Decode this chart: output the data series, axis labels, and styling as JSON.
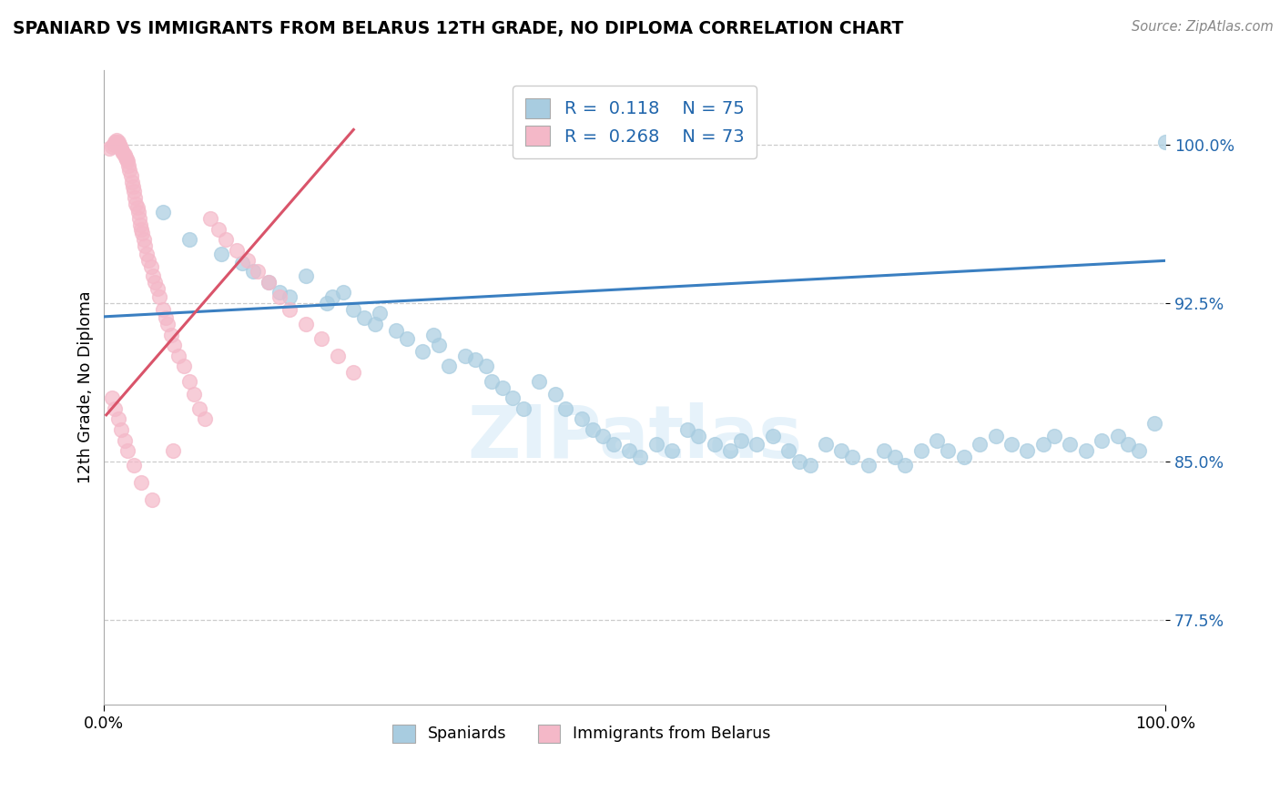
{
  "title": "SPANIARD VS IMMIGRANTS FROM BELARUS 12TH GRADE, NO DIPLOMA CORRELATION CHART",
  "source": "Source: ZipAtlas.com",
  "ylabel": "12th Grade, No Diploma",
  "xlim": [
    0.0,
    1.0
  ],
  "ylim": [
    0.735,
    1.035
  ],
  "xtick_labels": [
    "0.0%",
    "100.0%"
  ],
  "ytick_labels": [
    "77.5%",
    "85.0%",
    "92.5%",
    "100.0%"
  ],
  "ytick_vals": [
    0.775,
    0.85,
    0.925,
    1.0
  ],
  "legend_R_blue": "0.118",
  "legend_N_blue": "75",
  "legend_R_pink": "0.268",
  "legend_N_pink": "73",
  "blue_color": "#a8cce0",
  "pink_color": "#f4b8c8",
  "blue_line_color": "#3a7fc1",
  "pink_line_color": "#d9546a",
  "watermark": "ZIPatlas",
  "blue_trendline_x": [
    0.0,
    1.0
  ],
  "blue_trendline_y": [
    0.9185,
    0.945
  ],
  "pink_trendline_x": [
    0.002,
    0.235
  ],
  "pink_trendline_y": [
    0.872,
    1.007
  ],
  "blue_scatter_x": [
    0.055,
    0.08,
    0.11,
    0.13,
    0.14,
    0.155,
    0.165,
    0.175,
    0.19,
    0.21,
    0.215,
    0.225,
    0.235,
    0.245,
    0.255,
    0.26,
    0.275,
    0.285,
    0.3,
    0.31,
    0.315,
    0.325,
    0.34,
    0.35,
    0.36,
    0.365,
    0.375,
    0.385,
    0.395,
    0.41,
    0.425,
    0.435,
    0.45,
    0.46,
    0.47,
    0.48,
    0.495,
    0.505,
    0.52,
    0.535,
    0.55,
    0.56,
    0.575,
    0.59,
    0.6,
    0.615,
    0.63,
    0.645,
    0.655,
    0.665,
    0.68,
    0.695,
    0.705,
    0.72,
    0.735,
    0.745,
    0.755,
    0.77,
    0.785,
    0.795,
    0.81,
    0.825,
    0.84,
    0.855,
    0.87,
    0.885,
    0.895,
    0.91,
    0.925,
    0.94,
    0.955,
    0.965,
    0.975,
    0.99,
    1.0
  ],
  "blue_scatter_y": [
    0.968,
    0.955,
    0.948,
    0.944,
    0.94,
    0.935,
    0.93,
    0.928,
    0.938,
    0.925,
    0.928,
    0.93,
    0.922,
    0.918,
    0.915,
    0.92,
    0.912,
    0.908,
    0.902,
    0.91,
    0.905,
    0.895,
    0.9,
    0.898,
    0.895,
    0.888,
    0.885,
    0.88,
    0.875,
    0.888,
    0.882,
    0.875,
    0.87,
    0.865,
    0.862,
    0.858,
    0.855,
    0.852,
    0.858,
    0.855,
    0.865,
    0.862,
    0.858,
    0.855,
    0.86,
    0.858,
    0.862,
    0.855,
    0.85,
    0.848,
    0.858,
    0.855,
    0.852,
    0.848,
    0.855,
    0.852,
    0.848,
    0.855,
    0.86,
    0.855,
    0.852,
    0.858,
    0.862,
    0.858,
    0.855,
    0.858,
    0.862,
    0.858,
    0.855,
    0.86,
    0.862,
    0.858,
    0.855,
    0.868,
    1.001
  ],
  "pink_scatter_x": [
    0.005,
    0.007,
    0.009,
    0.01,
    0.011,
    0.012,
    0.013,
    0.014,
    0.015,
    0.016,
    0.017,
    0.018,
    0.019,
    0.02,
    0.021,
    0.022,
    0.023,
    0.024,
    0.025,
    0.026,
    0.027,
    0.028,
    0.029,
    0.03,
    0.031,
    0.032,
    0.033,
    0.034,
    0.035,
    0.036,
    0.037,
    0.038,
    0.04,
    0.042,
    0.044,
    0.046,
    0.048,
    0.05,
    0.052,
    0.055,
    0.058,
    0.06,
    0.063,
    0.066,
    0.07,
    0.075,
    0.08,
    0.085,
    0.09,
    0.095,
    0.1,
    0.108,
    0.115,
    0.125,
    0.135,
    0.145,
    0.155,
    0.165,
    0.175,
    0.19,
    0.205,
    0.22,
    0.235,
    0.007,
    0.01,
    0.013,
    0.016,
    0.019,
    0.022,
    0.028,
    0.035,
    0.045,
    0.065
  ],
  "pink_scatter_y": [
    0.998,
    0.999,
    1.0,
    1.001,
    1.001,
    1.002,
    1.001,
    1.0,
    0.999,
    0.998,
    0.997,
    0.996,
    0.995,
    0.994,
    0.993,
    0.992,
    0.99,
    0.988,
    0.985,
    0.982,
    0.98,
    0.978,
    0.975,
    0.972,
    0.97,
    0.968,
    0.965,
    0.962,
    0.96,
    0.958,
    0.955,
    0.952,
    0.948,
    0.945,
    0.942,
    0.938,
    0.935,
    0.932,
    0.928,
    0.922,
    0.918,
    0.915,
    0.91,
    0.905,
    0.9,
    0.895,
    0.888,
    0.882,
    0.875,
    0.87,
    0.965,
    0.96,
    0.955,
    0.95,
    0.945,
    0.94,
    0.935,
    0.928,
    0.922,
    0.915,
    0.908,
    0.9,
    0.892,
    0.88,
    0.875,
    0.87,
    0.865,
    0.86,
    0.855,
    0.848,
    0.84,
    0.832,
    0.855
  ]
}
